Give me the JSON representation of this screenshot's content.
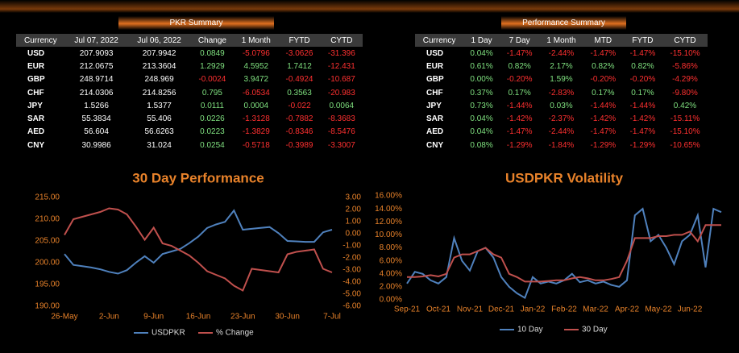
{
  "pkr_summary": {
    "title": "PKR Summary",
    "columns": [
      "Currency",
      "Jul 07, 2022",
      "Jul 06, 2022",
      "Change",
      "1 Month",
      "FYTD",
      "CYTD"
    ],
    "rows": [
      [
        "USD",
        "207.9093",
        "207.9942",
        "0.0849",
        "-5.0796",
        "-3.0626",
        "-31.396"
      ],
      [
        "EUR",
        "212.0675",
        "213.3604",
        "1.2929",
        "4.5952",
        "1.7412",
        "-12.431"
      ],
      [
        "GBP",
        "248.9714",
        "248.969",
        "-0.0024",
        "3.9472",
        "-0.4924",
        "-10.687"
      ],
      [
        "CHF",
        "214.0306",
        "214.8256",
        "0.795",
        "-6.0534",
        "0.3563",
        "-20.983"
      ],
      [
        "JPY",
        "1.5266",
        "1.5377",
        "0.0111",
        "0.0004",
        "-0.022",
        "0.0064"
      ],
      [
        "SAR",
        "55.3834",
        "55.406",
        "0.0226",
        "-1.3128",
        "-0.7882",
        "-8.3683"
      ],
      [
        "AED",
        "56.604",
        "56.6263",
        "0.0223",
        "-1.3829",
        "-0.8346",
        "-8.5476"
      ],
      [
        "CNY",
        "30.9986",
        "31.024",
        "0.0254",
        "-0.5718",
        "-0.3989",
        "-3.3007"
      ]
    ]
  },
  "performance_summary": {
    "title": "Performance Summary",
    "columns": [
      "Currency",
      "1 Day",
      "7 Day",
      "1 Month",
      "MTD",
      "FYTD",
      "CYTD"
    ],
    "rows": [
      [
        "USD",
        "0.04%",
        "-1.47%",
        "-2.44%",
        "-1.47%",
        "-1.47%",
        "-15.10%"
      ],
      [
        "EUR",
        "0.61%",
        "0.82%",
        "2.17%",
        "0.82%",
        "0.82%",
        "-5.86%"
      ],
      [
        "GBP",
        "0.00%",
        "-0.20%",
        "1.59%",
        "-0.20%",
        "-0.20%",
        "-4.29%"
      ],
      [
        "CHF",
        "0.37%",
        "0.17%",
        "-2.83%",
        "0.17%",
        "0.17%",
        "-9.80%"
      ],
      [
        "JPY",
        "0.73%",
        "-1.44%",
        "0.03%",
        "-1.44%",
        "-1.44%",
        "0.42%"
      ],
      [
        "SAR",
        "0.04%",
        "-1.42%",
        "-2.37%",
        "-1.42%",
        "-1.42%",
        "-15.11%"
      ],
      [
        "AED",
        "0.04%",
        "-1.47%",
        "-2.44%",
        "-1.47%",
        "-1.47%",
        "-15.10%"
      ],
      [
        "CNY",
        "0.08%",
        "-1.29%",
        "-1.84%",
        "-1.29%",
        "-1.29%",
        "-10.65%"
      ]
    ]
  },
  "chart_data": [
    {
      "type": "line",
      "title": "30 Day Performance",
      "categories": [
        "26-May",
        null,
        null,
        null,
        null,
        "2-Jun",
        null,
        null,
        null,
        null,
        "9-Jun",
        null,
        null,
        null,
        null,
        "16-Jun",
        null,
        null,
        null,
        null,
        "23-Jun",
        null,
        null,
        null,
        null,
        "30-Jun",
        null,
        null,
        null,
        null,
        "7-Jul"
      ],
      "series": [
        {
          "name": "USDPKR",
          "color": "#4f81bd",
          "values": [
            202.0,
            199.5,
            199.2,
            198.9,
            198.5,
            197.9,
            197.5,
            198.3,
            200.0,
            201.5,
            200.0,
            202.0,
            202.6,
            203.2,
            204.5,
            206.0,
            208.0,
            208.8,
            209.4,
            212.0,
            207.6,
            207.8,
            208.0,
            208.2,
            206.8,
            205.0,
            204.9,
            204.8,
            204.8,
            207.0,
            207.6
          ]
        },
        {
          "name": "% Change",
          "color": "#c0504d",
          "axis": "y2",
          "values": [
            -0.1,
            1.2,
            1.4,
            1.6,
            1.8,
            2.1,
            2.0,
            1.6,
            0.6,
            -0.5,
            0.5,
            -0.8,
            -1.0,
            -1.4,
            -1.8,
            -2.4,
            -3.1,
            -3.4,
            -3.7,
            -4.3,
            -4.7,
            -2.9,
            -3.0,
            -3.1,
            -3.2,
            -1.7,
            -1.5,
            -1.4,
            -1.3,
            -2.9,
            -3.2
          ]
        }
      ],
      "ylim": [
        190,
        215
      ],
      "yticks": [
        {
          "value": 190,
          "label": "190.00"
        },
        {
          "value": 195,
          "label": "195.00"
        },
        {
          "value": 200,
          "label": "200.00"
        },
        {
          "value": 205,
          "label": "205.00"
        },
        {
          "value": 210,
          "label": "210.00"
        },
        {
          "value": 215,
          "label": "215.00"
        }
      ],
      "y2lim": [
        -6,
        3
      ],
      "y2ticks": [
        {
          "value": -6,
          "label": "-6.00"
        },
        {
          "value": -5,
          "label": "-5.00"
        },
        {
          "value": -4,
          "label": "-4.00"
        },
        {
          "value": -3,
          "label": "-3.00"
        },
        {
          "value": -2,
          "label": "-2.00"
        },
        {
          "value": -1,
          "label": "-1.00"
        },
        {
          "value": 0,
          "label": "0.00"
        },
        {
          "value": 1,
          "label": "1.00"
        },
        {
          "value": 2,
          "label": "2.00"
        },
        {
          "value": 3,
          "label": "3.00"
        }
      ]
    },
    {
      "type": "line",
      "title": "USDPKR Volatility",
      "categories": [
        "Sep-21",
        null,
        null,
        null,
        "Oct-21",
        null,
        null,
        null,
        "Nov-21",
        null,
        null,
        null,
        "Dec-21",
        null,
        null,
        null,
        "Jan-22",
        null,
        null,
        null,
        "Feb-22",
        null,
        null,
        null,
        "Mar-22",
        null,
        null,
        null,
        "Apr-22",
        null,
        null,
        null,
        "May-22",
        null,
        null,
        null,
        "Jun-22",
        null,
        null,
        null,
        null
      ],
      "series": [
        {
          "name": "10 Day",
          "color": "#4f81bd",
          "values": [
            2.5,
            4.3,
            4.0,
            3.0,
            2.5,
            3.5,
            9.5,
            6.0,
            4.5,
            7.5,
            8.0,
            6.5,
            3.5,
            2.0,
            1.0,
            0.3,
            3.5,
            2.5,
            2.8,
            2.5,
            3.0,
            4.0,
            2.7,
            3.0,
            2.5,
            2.8,
            2.3,
            2.0,
            3.0,
            13.0,
            14.0,
            9.0,
            10.0,
            8.0,
            5.5,
            9.0,
            10.0,
            13.0,
            5.0,
            14.0,
            13.5
          ]
        },
        {
          "name": "30 Day",
          "color": "#c0504d",
          "values": [
            3.5,
            3.5,
            3.6,
            3.8,
            3.6,
            4.0,
            6.5,
            7.0,
            7.0,
            7.5,
            8.0,
            7.0,
            6.5,
            4.0,
            3.5,
            2.8,
            2.8,
            2.8,
            2.9,
            3.0,
            3.0,
            3.3,
            3.5,
            3.3,
            3.0,
            3.0,
            3.2,
            3.5,
            6.0,
            9.5,
            9.5,
            9.5,
            9.8,
            9.8,
            10.0,
            10.0,
            10.5,
            9.0,
            11.5,
            11.5,
            11.5
          ]
        }
      ],
      "ylim": [
        0,
        16
      ],
      "yticks": [
        {
          "value": 0,
          "label": "0.00%"
        },
        {
          "value": 2,
          "label": "2.00%"
        },
        {
          "value": 4,
          "label": "4.00%"
        },
        {
          "value": 6,
          "label": "6.00%"
        },
        {
          "value": 8,
          "label": "8.00%"
        },
        {
          "value": 10,
          "label": "10.00%"
        },
        {
          "value": 12,
          "label": "12.00%"
        },
        {
          "value": 14,
          "label": "14.00%"
        },
        {
          "value": 16,
          "label": "16.00%"
        }
      ]
    }
  ]
}
